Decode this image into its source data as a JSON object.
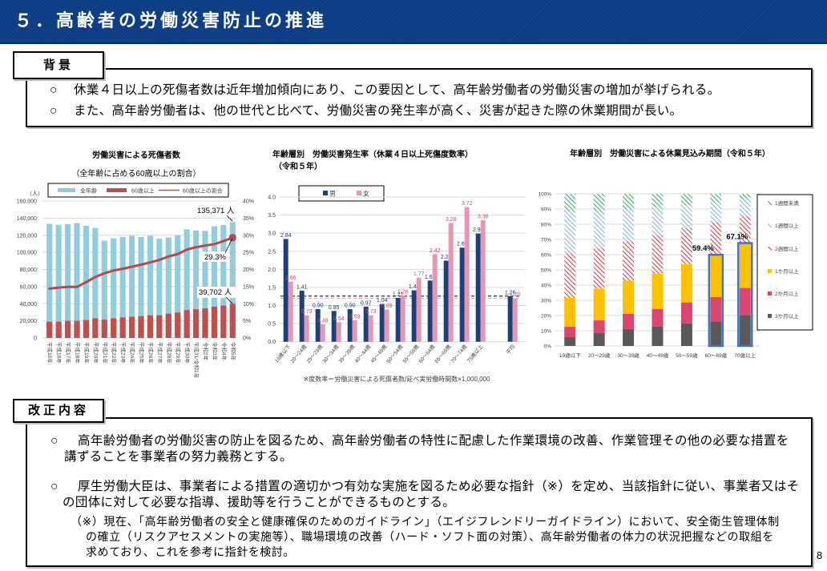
{
  "header": {
    "title": "５．高齢者の労働災害防止の推進"
  },
  "background": {
    "label": "背景",
    "items": [
      {
        "bullet": "○",
        "text": "休業４日以上の死傷者数は近年増加傾向にあり、この要因として、高年齢労働者の労働災害の増加が挙げられる。"
      },
      {
        "bullet": "○",
        "text": "また、高年齢労働者は、他の世代と比べて、労働災害の発生率が高く、災害が起きた際の休業期間が長い。"
      }
    ]
  },
  "revision": {
    "label": "改正内容",
    "items": [
      {
        "bullet": "○",
        "lines": [
          "高年齢労働者の労働災害の防止を図るため、高年齢労働者の特性に配慮した作業環境の改善、作業管理その他の必要な措置を",
          "講ずることを事業者の努力義務とする。"
        ]
      },
      {
        "bullet": "○",
        "lines": [
          "厚生労働大臣は、事業者による措置の適切かつ有効な実施を図るため必要な指針（※）を定め、当該指針に従い、事業者又はそ",
          "の団体に対して必要な指導、援助等を行うことができるものとする。"
        ]
      }
    ],
    "note": {
      "mark": "（※）",
      "lines": [
        "現在、「高年齢労働者の安全と健康確保のためのガイドライン」（エイジフレンドリーガイドライン）において、安全衛生管理体制",
        "の確立（リスクアセスメントの実施等）、職場環境の改善（ハード・ソフト面の対策）、高年齢労働者の体力の状況把握などの取組を",
        "求めており、これを参考に指針を検討。"
      ]
    }
  },
  "page_number": "8",
  "chart_data": [
    {
      "type": "bar",
      "combo": "bar+line",
      "title": "労働災害による死傷者数",
      "subtitle": "（全年齢に占める60歳以上の割合）",
      "ylabel": "（人）",
      "categories": [
        "平成15年",
        "平成16年",
        "平成17年",
        "平成18年",
        "平成19年",
        "平成20年",
        "平成21年",
        "平成22年",
        "平成23年",
        "平成24年",
        "平成25年",
        "平成26年",
        "平成27年",
        "平成28年",
        "平成29年",
        "平成30年",
        "平成31/令和1年",
        "令和2年",
        "令和3年",
        "令和4年",
        "令和5年"
      ],
      "series": [
        {
          "name": "全年齢",
          "kind": "bar",
          "axis": "left",
          "color": "#92cddc",
          "values": [
            133300,
            132300,
            133000,
            134200,
            131100,
            128600,
            113700,
            116500,
            118100,
            119400,
            118100,
            119400,
            116200,
            117500,
            120000,
            127000,
            125700,
            125100,
            130400,
            132000,
            135371
          ]
        },
        {
          "name": "60歳以上",
          "kind": "bar",
          "axis": "left",
          "color": "#c0504d",
          "values": [
            19000,
            19000,
            20000,
            20000,
            21000,
            22900,
            21300,
            22900,
            23900,
            24800,
            25500,
            26500,
            26500,
            28400,
            29700,
            32600,
            33500,
            34500,
            36500,
            37700,
            39702
          ]
        },
        {
          "name": "60歳以上の割合",
          "kind": "line",
          "axis": "right",
          "unit": "%",
          "color": "#b5494b",
          "values": [
            14.4,
            14.7,
            14.9,
            14.9,
            16.3,
            17.8,
            18.9,
            19.7,
            20.2,
            20.8,
            21.4,
            22.1,
            22.8,
            23.8,
            24.5,
            25.8,
            26.5,
            27.0,
            27.4,
            28.3,
            29.3
          ]
        }
      ],
      "ylim": [
        0,
        160000
      ],
      "y_tick_step": 20000,
      "y_tick_labels": [
        "0",
        "20,000",
        "40,000",
        "60,000",
        "80,000",
        "100,000",
        "120,000",
        "140,000",
        "160,000"
      ],
      "y2lim": [
        0,
        40
      ],
      "y2_tick_step": 5,
      "y2_tick_labels": [
        "0%",
        "5%",
        "10%",
        "15%",
        "20%",
        "25%",
        "30%",
        "35%",
        "40%"
      ],
      "annotations": [
        {
          "text": "135,371 人",
          "series": "全年齢",
          "category": "令和5年"
        },
        {
          "text": "29.3%",
          "series": "60歳以上の割合",
          "category": "令和5年"
        },
        {
          "text": "39,702 人",
          "series": "60歳以上",
          "category": "令和5年"
        }
      ],
      "legend": "top",
      "grid": true
    },
    {
      "type": "bar",
      "title": "年齢層別　労働災害発生率（休業４日以上死傷度数率）",
      "subtitle": "（令和５年）",
      "categories": [
        "19歳以下",
        "20～24歳",
        "25～29歳",
        "30～34歳",
        "35～39歳",
        "40～44歳",
        "45～49歳",
        "50～54歳",
        "55～59歳",
        "60～64歳",
        "65～69歳",
        "70～74歳",
        "75歳以上",
        "",
        "平均"
      ],
      "series": [
        {
          "name": "男",
          "color": "#1f3f7a",
          "label_color": "#1f3864",
          "values": [
            2.84,
            1.41,
            0.9,
            0.85,
            0.9,
            0.97,
            1.04,
            1.21,
            1.42,
            1.69,
            2.24,
            2.6,
            2.99,
            null,
            1.26
          ],
          "labels": [
            "2.84",
            "1.41",
            "0.90",
            "0.85",
            "0.90",
            "0.97",
            "1.04",
            "1.21",
            "1.42",
            "1.69",
            "2.24",
            "2.60",
            "2.99",
            "",
            "1.26"
          ]
        },
        {
          "name": "女",
          "color": "#e896ae",
          "label_color": "#c0506e",
          "values": [
            1.66,
            0.73,
            0.48,
            0.54,
            0.59,
            0.73,
            0.89,
            1.28,
            1.77,
            2.42,
            3.28,
            3.72,
            3.36,
            null,
            1.2
          ],
          "labels": [
            "1.66",
            "0.73",
            "0.48",
            "0.54",
            "0.59",
            "0.73",
            "0.89",
            "1.28",
            "1.77",
            "2.42",
            "3.28",
            "3.72",
            "3.36",
            "",
            "1.20"
          ]
        }
      ],
      "reference_lines": [
        {
          "series": "男",
          "value": 1.26,
          "style": "dashed",
          "color": "#1f3864"
        },
        {
          "series": "女",
          "value": 1.2,
          "style": "dashed",
          "color": "#d7a7c0"
        }
      ],
      "ylim": [
        0,
        4.0
      ],
      "y_tick_step": 0.5,
      "y_tick_labels": [
        "0.0",
        "0.5",
        "1.0",
        "1.5",
        "2.0",
        "2.5",
        "3.0",
        "3.5",
        "4.0"
      ],
      "footnote": "※度数率＝労働災害による死傷者数/延べ実労働時間数×1,000,000",
      "legend": "top-left",
      "grid": true
    },
    {
      "type": "bar",
      "stacked": true,
      "percent": true,
      "title": "年齢層別　労働災害による休業見込み期間（令和５年）",
      "categories": [
        "19歳以下",
        "20～29歳",
        "30～39歳",
        "40～49歳",
        "50～59歳",
        "60～69歳",
        "70歳以上"
      ],
      "series": [
        {
          "name": "1週間未満",
          "color": "#3caf6e",
          "pattern": "hatched",
          "values": [
            11.8,
            11.8,
            10.5,
            9.1,
            7.4,
            5.6,
            3.9
          ]
        },
        {
          "name": "1週間以上",
          "color": "#8db3e2",
          "pattern": "hatched",
          "values": [
            27.3,
            23.6,
            20.7,
            18.1,
            15.1,
            13.2,
            10.5
          ]
        },
        {
          "name": "2週間以上",
          "color": "#d8414f",
          "pattern": "hatched",
          "values": [
            29.3,
            26.9,
            25.8,
            25.4,
            23.6,
            21.8,
            18.5
          ]
        },
        {
          "name": "1か月以上",
          "color": "#ffc000",
          "pattern": "solid",
          "values": [
            19.0,
            20.9,
            21.9,
            23.2,
            25.3,
            27.3,
            29.0
          ]
        },
        {
          "name": "2か月以上",
          "color": "#db4570",
          "pattern": "solid",
          "values": [
            6.8,
            8.4,
            10.0,
            11.4,
            13.7,
            16.3,
            17.7
          ]
        },
        {
          "name": "3か月以上",
          "color": "#595959",
          "pattern": "solid",
          "values": [
            5.8,
            8.4,
            11.1,
            12.8,
            14.9,
            15.8,
            20.4
          ]
        }
      ],
      "ylim": [
        0,
        100
      ],
      "y_tick_step": 10,
      "y_tick_labels": [
        "0%",
        "10%",
        "20%",
        "30%",
        "40%",
        "50%",
        "60%",
        "70%",
        "80%",
        "90%",
        "100%"
      ],
      "highlights": [
        {
          "category": "60～69歳",
          "value": 59.4,
          "text": "59.4%"
        },
        {
          "category": "70歳以上",
          "value": 67.1,
          "text": "67.1%"
        }
      ],
      "highlight_color": "#4472c4",
      "legend": "right",
      "grid": true
    }
  ]
}
